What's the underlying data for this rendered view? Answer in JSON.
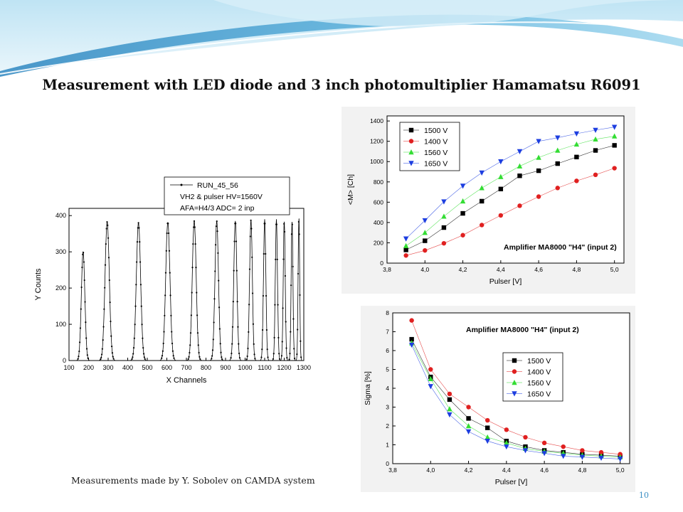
{
  "slide": {
    "title": "Measurement with LED diode and 3 inch photomultiplier Hamamatsu R6091",
    "footnote": "Measurements made by Y. Sobolev on CAMDA system",
    "page_number": "10",
    "theme_colors": {
      "wave_dark": "#4a9fd0",
      "wave_light": "#bfe4f4",
      "page_number": "#3b8fc4"
    }
  },
  "chart_data": [
    {
      "type": "scatter",
      "name": "spectrum-chart",
      "xlabel": "X Channels",
      "ylabel": "Y Counts",
      "xlim": [
        100,
        1300
      ],
      "ylim": [
        0,
        420
      ],
      "x_ticks": [
        100,
        200,
        300,
        400,
        500,
        600,
        700,
        800,
        900,
        1000,
        1100,
        1200,
        1300
      ],
      "y_ticks": [
        0,
        100,
        200,
        300,
        400
      ],
      "legend": {
        "placement": "top-center",
        "lines": [
          "RUN_45_56",
          "VH2 & pulser  HV=1560V",
          "AFA=H4/3 ADC= 2 inp"
        ]
      },
      "series": [
        {
          "name": "RUN_45_56",
          "color": "#000000",
          "peaks": [
            {
              "center": 172,
              "height": 300,
              "sigma": 9
            },
            {
              "center": 295,
              "height": 383,
              "sigma": 11
            },
            {
              "center": 455,
              "height": 380,
              "sigma": 11
            },
            {
              "center": 605,
              "height": 382,
              "sigma": 11
            },
            {
              "center": 740,
              "height": 385,
              "sigma": 10
            },
            {
              "center": 855,
              "height": 385,
              "sigma": 9
            },
            {
              "center": 950,
              "height": 385,
              "sigma": 8
            },
            {
              "center": 1030,
              "height": 388,
              "sigma": 7
            },
            {
              "center": 1100,
              "height": 390,
              "sigma": 6
            },
            {
              "center": 1160,
              "height": 390,
              "sigma": 5.5
            },
            {
              "center": 1200,
              "height": 385,
              "sigma": 5
            },
            {
              "center": 1240,
              "height": 385,
              "sigma": 4.5
            },
            {
              "center": 1275,
              "height": 395,
              "sigma": 4
            }
          ]
        }
      ],
      "grid": false
    },
    {
      "type": "line",
      "name": "mean-chart",
      "xlabel": "Pulser [V]",
      "ylabel": "<M> [Ch]",
      "annotation": "Amplifier MA8000 \"H4\" (input 2)",
      "xlim": [
        3.8,
        5.05
      ],
      "ylim": [
        0,
        1450
      ],
      "x_ticks": [
        "3,8",
        "4,0",
        "4,2",
        "4,4",
        "4,6",
        "4,8",
        "5,0"
      ],
      "x_tick_values": [
        3.8,
        4.0,
        4.2,
        4.4,
        4.6,
        4.8,
        5.0
      ],
      "y_ticks": [
        0,
        200,
        400,
        600,
        800,
        1000,
        1200,
        1400
      ],
      "legend_placement": "top-left",
      "x": [
        3.9,
        4.0,
        4.1,
        4.2,
        4.3,
        4.4,
        4.5,
        4.6,
        4.7,
        4.8,
        4.9,
        5.0
      ],
      "series": [
        {
          "name": "1500 V",
          "color": "#000000",
          "marker": "square",
          "values": [
            130,
            220,
            350,
            490,
            610,
            730,
            860,
            910,
            980,
            1045,
            1110,
            1160
          ]
        },
        {
          "name": "1400 V",
          "color": "#e02020",
          "marker": "circle",
          "values": [
            75,
            125,
            195,
            275,
            375,
            470,
            565,
            655,
            740,
            810,
            870,
            935
          ]
        },
        {
          "name": "1560 V",
          "color": "#33dd33",
          "marker": "triangle-up",
          "values": [
            170,
            300,
            460,
            610,
            740,
            850,
            955,
            1040,
            1110,
            1170,
            1220,
            1250
          ]
        },
        {
          "name": "1650 V",
          "color": "#1d3ee0",
          "marker": "triangle-down",
          "values": [
            240,
            420,
            605,
            760,
            890,
            1000,
            1100,
            1200,
            1235,
            1275,
            1310,
            1340
          ]
        }
      ],
      "grid": false
    },
    {
      "type": "line",
      "name": "sigma-chart",
      "xlabel": "Pulser [V]",
      "ylabel": "Sigma [%]",
      "annotation": "Amplifier MA8000 \"H4\" (input 2)",
      "xlim": [
        3.8,
        5.05
      ],
      "ylim": [
        0,
        8
      ],
      "x_ticks": [
        "3,8",
        "4,0",
        "4,2",
        "4,4",
        "4,6",
        "4,8",
        "5,0"
      ],
      "x_tick_values": [
        3.8,
        4.0,
        4.2,
        4.4,
        4.6,
        4.8,
        5.0
      ],
      "y_ticks": [
        0,
        1,
        2,
        3,
        4,
        5,
        6,
        7,
        8
      ],
      "legend_placement": "center-right",
      "x": [
        3.9,
        4.0,
        4.1,
        4.2,
        4.3,
        4.4,
        4.5,
        4.6,
        4.7,
        4.8,
        4.9,
        5.0
      ],
      "series": [
        {
          "name": "1500 V",
          "color": "#000000",
          "marker": "square",
          "values": [
            6.6,
            4.6,
            3.4,
            2.4,
            1.9,
            1.2,
            0.9,
            0.7,
            0.6,
            0.5,
            0.45,
            0.4
          ]
        },
        {
          "name": "1400 V",
          "color": "#e02020",
          "marker": "circle",
          "values": [
            7.6,
            5.0,
            3.7,
            3.0,
            2.3,
            1.8,
            1.4,
            1.1,
            0.9,
            0.7,
            0.6,
            0.5
          ]
        },
        {
          "name": "1560 V",
          "color": "#33dd33",
          "marker": "triangle-up",
          "values": [
            6.4,
            4.5,
            2.9,
            2.0,
            1.4,
            1.1,
            0.8,
            0.65,
            0.55,
            0.45,
            0.4,
            0.35
          ]
        },
        {
          "name": "1650 V",
          "color": "#1d3ee0",
          "marker": "triangle-down",
          "values": [
            6.3,
            4.1,
            2.6,
            1.7,
            1.2,
            0.9,
            0.7,
            0.55,
            0.4,
            0.35,
            0.3,
            0.25
          ]
        }
      ],
      "grid": false
    }
  ]
}
